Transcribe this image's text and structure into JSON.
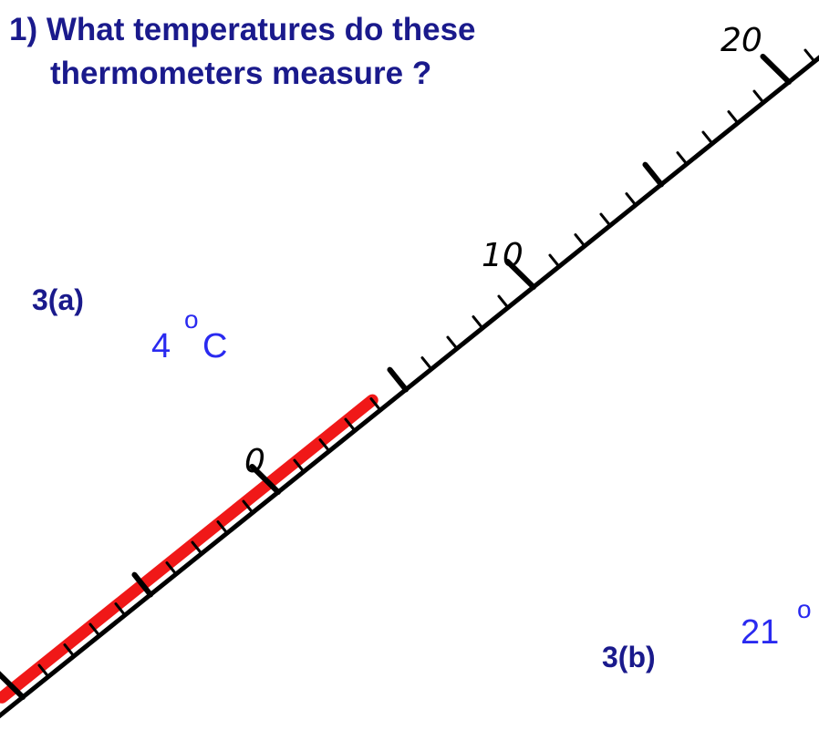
{
  "title": {
    "line1": "1) What temperatures do these",
    "line2": "thermometers measure ?"
  },
  "scale": {
    "labels": [
      "0",
      "10",
      "20"
    ]
  },
  "part_a": {
    "label": "3(a)",
    "answer": "4",
    "degree": "o",
    "unit": "C"
  },
  "part_b": {
    "label": "3(b)",
    "answer": "21",
    "degree": "o"
  }
}
